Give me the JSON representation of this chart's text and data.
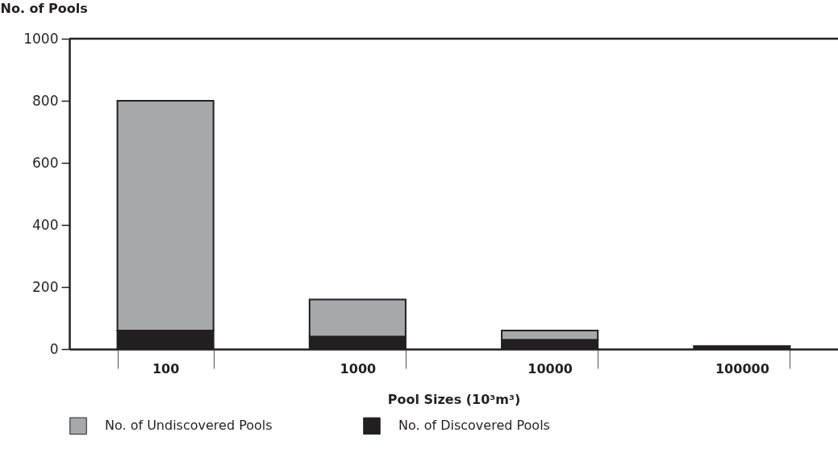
{
  "chart_data": {
    "type": "bar",
    "stacked": true,
    "xlabel": "Pool Sizes (10³m³)",
    "ylabel": "No. of Pools",
    "categories": [
      "100",
      "1000",
      "10000",
      "100000"
    ],
    "series": [
      {
        "name": "No. of Discovered Pools",
        "color": "#231f20",
        "values": [
          60,
          40,
          30,
          10
        ]
      },
      {
        "name": "No. of Undiscovered Pools",
        "color": "#a7a8ab",
        "values": [
          740,
          120,
          30,
          null
        ]
      }
    ],
    "ylim": [
      0,
      1000
    ],
    "yticks": [
      0,
      200,
      400,
      600,
      800,
      1000
    ],
    "grid": false,
    "legend": "bottom"
  }
}
